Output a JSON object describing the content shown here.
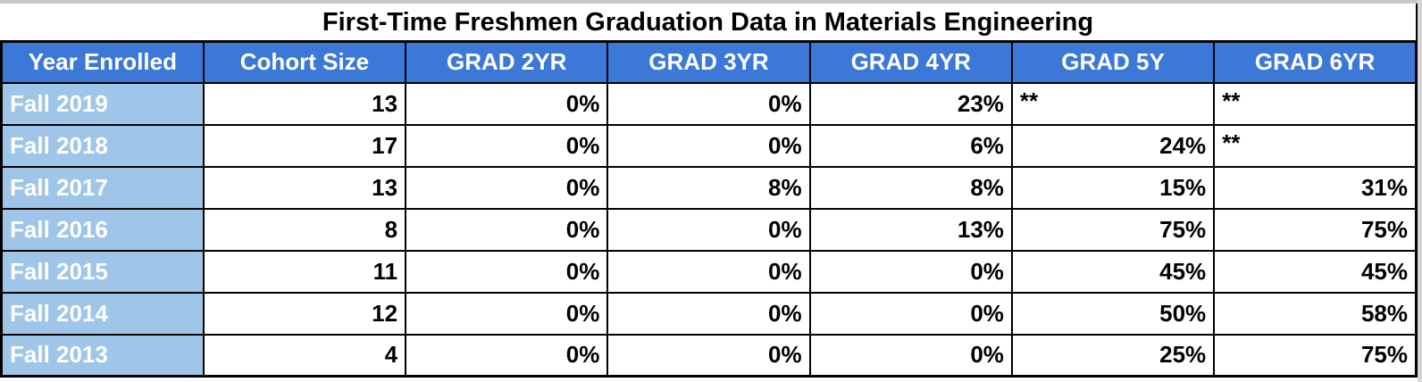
{
  "chart_data": {
    "type": "table",
    "title": "First-Time Freshmen Graduation Data in Materials Engineering",
    "columns": [
      "Year Enrolled",
      "Cohort Size",
      "GRAD 2YR",
      "GRAD 3YR",
      "GRAD 4YR",
      "GRAD 5Y",
      "GRAD 6YR"
    ],
    "rows": [
      [
        "Fall 2019",
        "13",
        "0%",
        "0%",
        "23%",
        "**",
        "**"
      ],
      [
        "Fall 2018",
        "17",
        "0%",
        "0%",
        "6%",
        "24%",
        "**"
      ],
      [
        "Fall 2017",
        "13",
        "0%",
        "8%",
        "8%",
        "15%",
        "31%"
      ],
      [
        "Fall 2016",
        "8",
        "0%",
        "0%",
        "13%",
        "75%",
        "75%"
      ],
      [
        "Fall 2015",
        "11",
        "0%",
        "0%",
        "0%",
        "45%",
        "45%"
      ],
      [
        "Fall 2014",
        "12",
        "0%",
        "0%",
        "0%",
        "50%",
        "58%"
      ],
      [
        "Fall 2013",
        "4",
        "0%",
        "0%",
        "0%",
        "25%",
        "75%"
      ]
    ],
    "not_available_marker": "**",
    "layout_hints": {
      "value_alignment": "right",
      "marker_alignment": "left",
      "grid": "on"
    }
  },
  "colors": {
    "header_bg": "#3c78d8",
    "year_column_bg": "#9fc5e8",
    "border": "#000000",
    "header_text": "#ffffff",
    "cell_text": "#000000",
    "title_text": "#000000"
  }
}
